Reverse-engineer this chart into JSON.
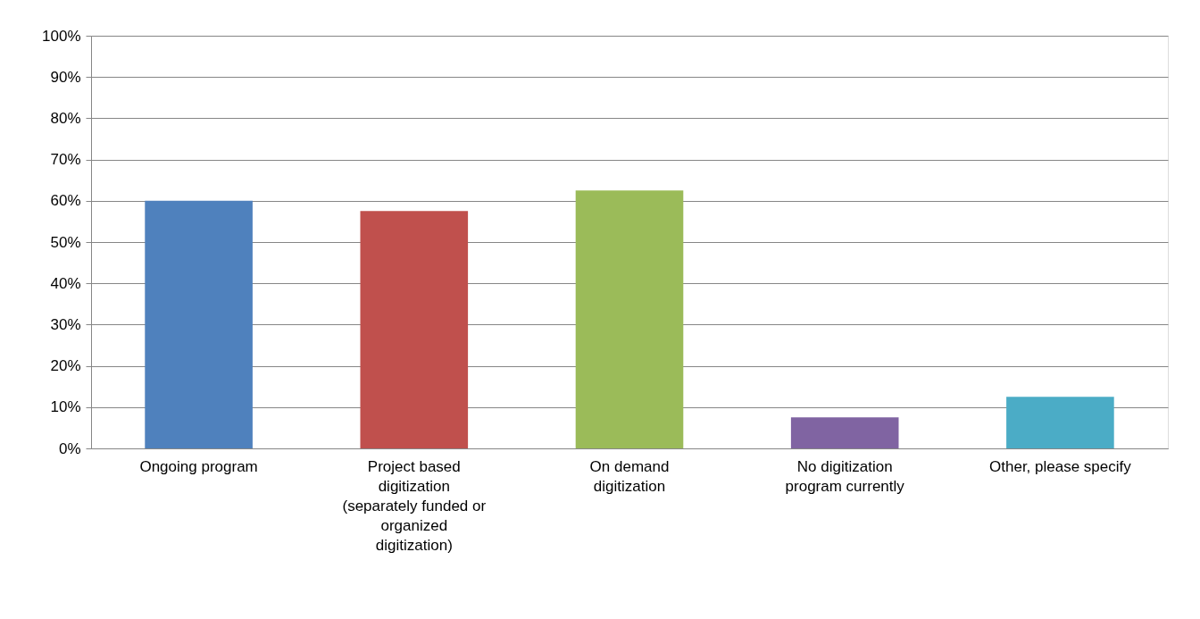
{
  "chart_data": {
    "type": "bar",
    "categories": [
      "Ongoing program",
      "Project based digitization (separately funded or organized digitization)",
      "On demand digitization",
      "No digitization program currently",
      "Other, please specify"
    ],
    "values": [
      60,
      57.5,
      62.5,
      7.5,
      12.5
    ],
    "colors": [
      "#4f81bd",
      "#c0504d",
      "#9bbb59",
      "#8064a2",
      "#4bacc6"
    ],
    "ylim": [
      0,
      100
    ],
    "yticks": [
      {
        "value": 0,
        "label": "0%"
      },
      {
        "value": 10,
        "label": "10%"
      },
      {
        "value": 20,
        "label": "20%"
      },
      {
        "value": 30,
        "label": "30%"
      },
      {
        "value": 40,
        "label": "40%"
      },
      {
        "value": 50,
        "label": "50%"
      },
      {
        "value": 60,
        "label": "60%"
      },
      {
        "value": 70,
        "label": "70%"
      },
      {
        "value": 80,
        "label": "80%"
      },
      {
        "value": 90,
        "label": "90%"
      },
      {
        "value": 100,
        "label": "100%"
      }
    ],
    "grid": "y"
  }
}
